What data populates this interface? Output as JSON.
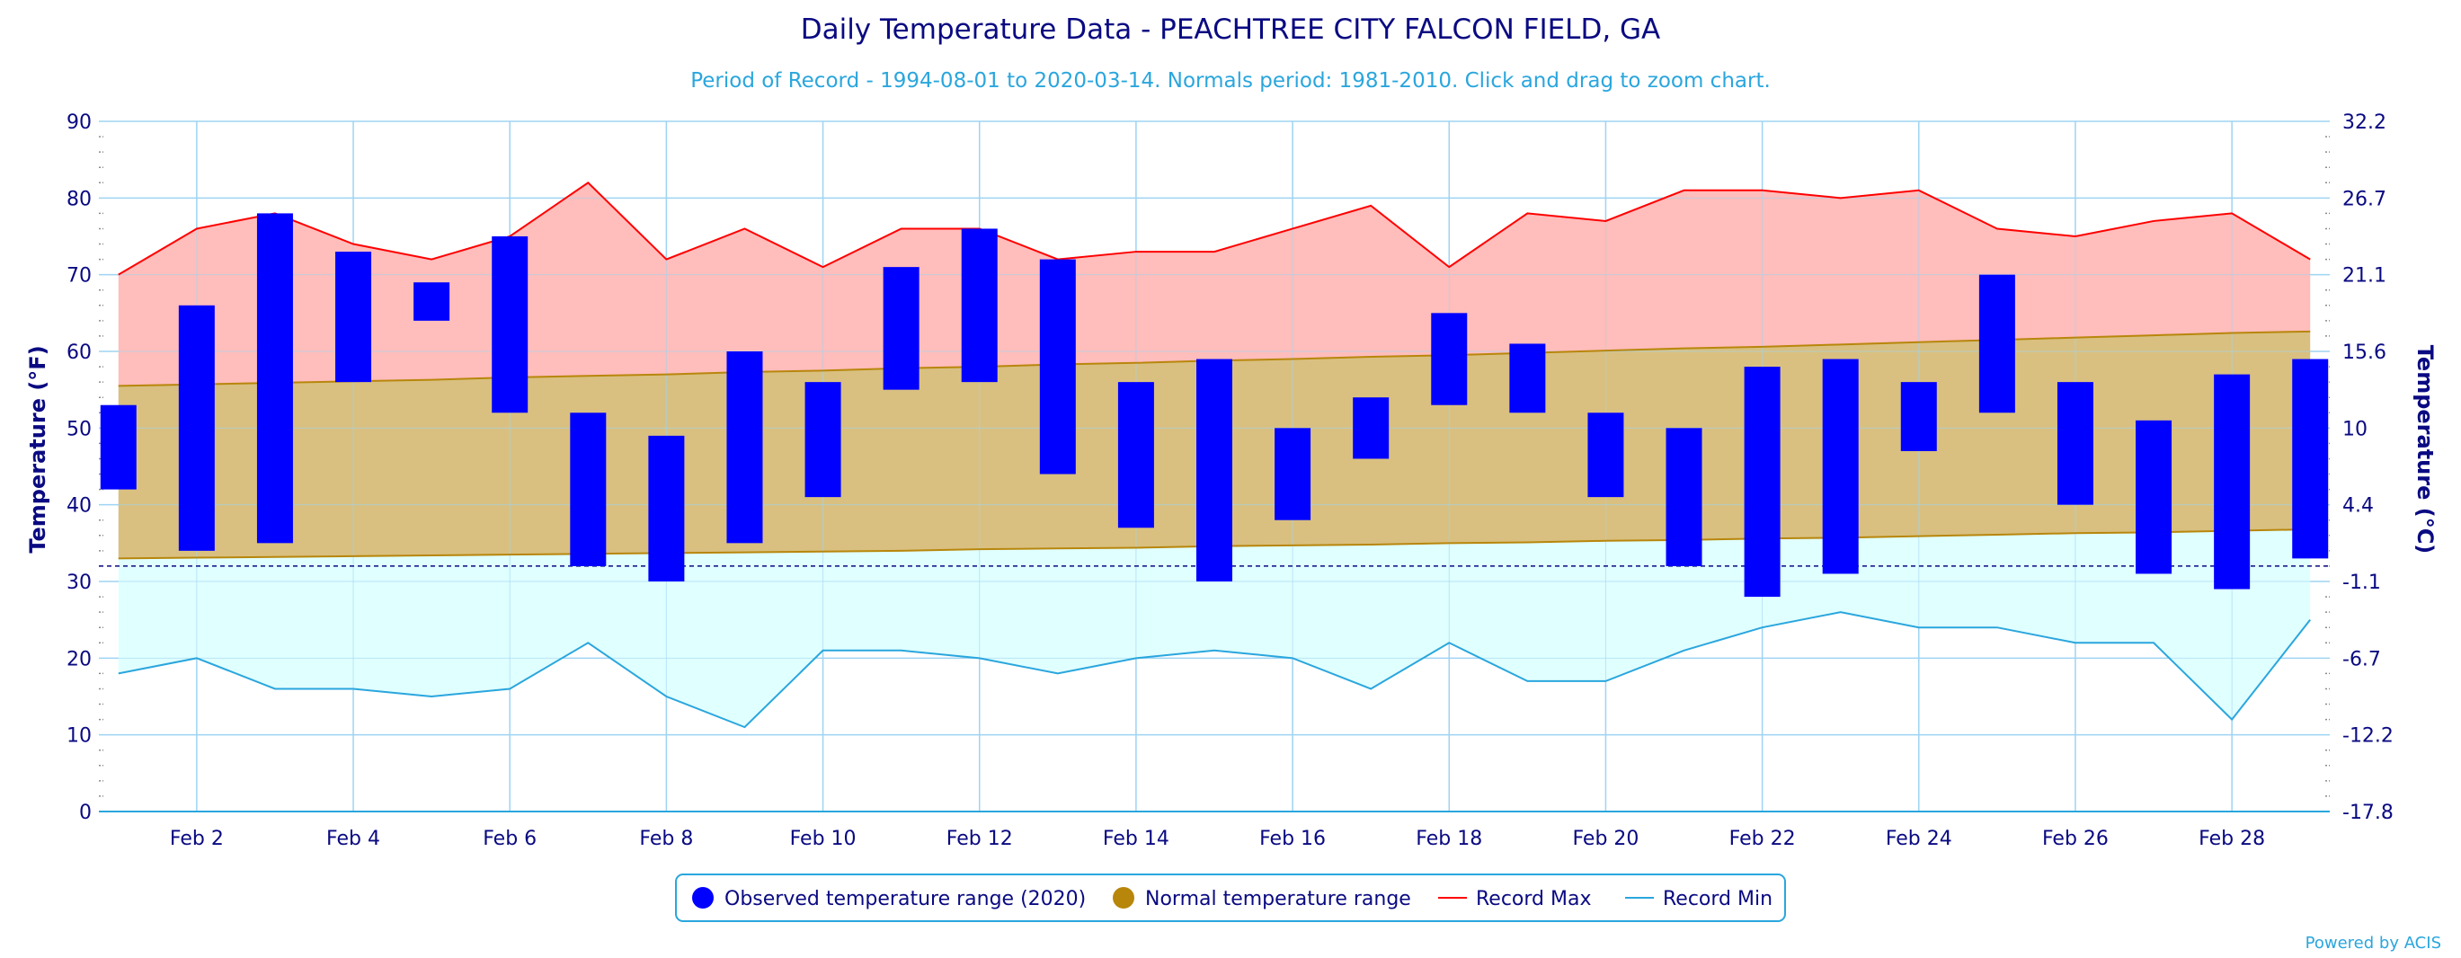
{
  "chart_data": {
    "type": "bar",
    "title": "Daily Temperature Data - PEACHTREE CITY FALCON FIELD, GA",
    "subtitle": "Period of Record - 1994-08-01 to 2020-03-14. Normals period: 1981-2010. Click and drag to zoom chart.",
    "ylabel_left": "Temperature (°F)",
    "ylabel_right": "Temperature (°C)",
    "ylim": [
      0,
      90
    ],
    "y_ticks_left": [
      "0",
      "10",
      "20",
      "30",
      "40",
      "50",
      "60",
      "70",
      "80",
      "90"
    ],
    "y_ticks_right": [
      "-17.8",
      "-12.2",
      "-6.7",
      "-1.1",
      "4.4",
      "10",
      "15.6",
      "21.1",
      "26.7",
      "32.2"
    ],
    "freezing_line": 32,
    "x_tick_labels": [
      "Feb 2",
      "Feb 4",
      "Feb 6",
      "Feb 8",
      "Feb 10",
      "Feb 12",
      "Feb 14",
      "Feb 16",
      "Feb 18",
      "Feb 20",
      "Feb 22",
      "Feb 24",
      "Feb 26",
      "Feb 28"
    ],
    "x_tick_days": [
      2,
      4,
      6,
      8,
      10,
      12,
      14,
      16,
      18,
      20,
      22,
      24,
      26,
      28
    ],
    "days": [
      1,
      2,
      3,
      4,
      5,
      6,
      7,
      8,
      9,
      10,
      11,
      12,
      13,
      14,
      15,
      16,
      17,
      18,
      19,
      20,
      21,
      22,
      23,
      24,
      25,
      26,
      27,
      28,
      29
    ],
    "series": [
      {
        "name": "Observed temperature range (2020)",
        "color": "#0000ff",
        "low": [
          42,
          34,
          35,
          56,
          64,
          52,
          32,
          30,
          35,
          41,
          55,
          56,
          44,
          37,
          30,
          38,
          46,
          53,
          52,
          41,
          32,
          28,
          31,
          47,
          52,
          40,
          31,
          29,
          33
        ],
        "high": [
          53,
          66,
          78,
          73,
          69,
          75,
          52,
          49,
          60,
          56,
          71,
          76,
          72,
          56,
          59,
          50,
          54,
          65,
          61,
          52,
          50,
          58,
          59,
          56,
          70,
          56,
          51,
          57,
          59
        ]
      },
      {
        "name": "Normal temperature range",
        "color": "#b8860b",
        "low": [
          33,
          33.1,
          33.2,
          33.3,
          33.4,
          33.5,
          33.6,
          33.7,
          33.8,
          33.9,
          34,
          34.2,
          34.3,
          34.4,
          34.6,
          34.7,
          34.8,
          35,
          35.1,
          35.3,
          35.4,
          35.6,
          35.7,
          35.9,
          36.1,
          36.3,
          36.4,
          36.6,
          36.8
        ],
        "high": [
          55.5,
          55.7,
          55.9,
          56.1,
          56.3,
          56.6,
          56.8,
          57,
          57.3,
          57.5,
          57.8,
          58,
          58.3,
          58.5,
          58.8,
          59,
          59.3,
          59.5,
          59.8,
          60.1,
          60.4,
          60.6,
          60.9,
          61.2,
          61.5,
          61.8,
          62.1,
          62.4,
          62.6
        ]
      },
      {
        "name": "Record Max",
        "color": "#ff0000",
        "values": [
          70,
          76,
          78,
          74,
          72,
          75,
          82,
          72,
          76,
          71,
          76,
          76,
          72,
          73,
          73,
          76,
          79,
          71,
          78,
          77,
          81,
          81,
          80,
          81,
          76,
          75,
          77,
          78,
          72
        ]
      },
      {
        "name": "Record Min",
        "color": "#2aa6dd",
        "values": [
          18,
          20,
          16,
          16,
          15,
          16,
          22,
          15,
          11,
          21,
          21,
          20,
          18,
          20,
          21,
          20,
          16,
          22,
          17,
          17,
          21,
          24,
          26,
          24,
          24,
          22,
          22,
          12,
          25
        ]
      }
    ],
    "legend_position": "bottom-center",
    "grid": true
  },
  "credit": "Powered by ACIS"
}
